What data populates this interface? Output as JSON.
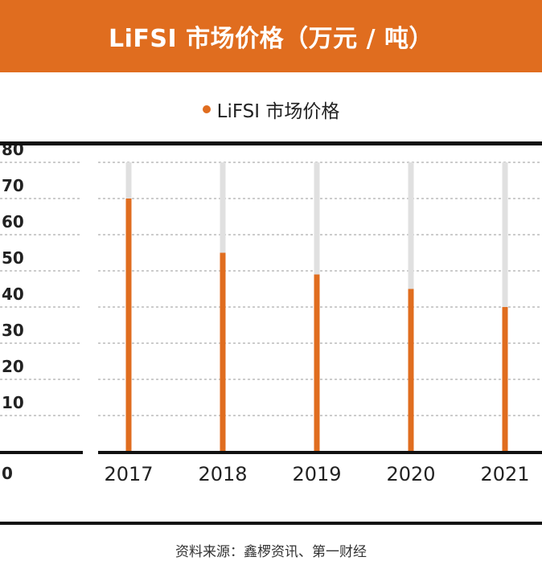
{
  "title": "LiFSI 市场价格（万元 / 吨）",
  "legend": "LiFSI 市场价格",
  "source": "资料来源：鑫椤资讯、第一财经",
  "colors": {
    "accent": "#e06d1f",
    "bar": "#e06d1f",
    "track": "#e0e0e0",
    "grid": "#9a9a9a",
    "axis": "#111111"
  },
  "chart_data": {
    "type": "bar",
    "categories": [
      "2017",
      "2018",
      "2019",
      "2020",
      "2021"
    ],
    "series": [
      {
        "name": "LiFSI 市场价格",
        "values": [
          70,
          55,
          49,
          45,
          40
        ]
      }
    ],
    "ylim": [
      0,
      80
    ],
    "yticks": [
      0,
      10,
      20,
      30,
      40,
      50,
      60,
      70,
      80
    ],
    "grid": true,
    "legend_position": "top-center"
  }
}
